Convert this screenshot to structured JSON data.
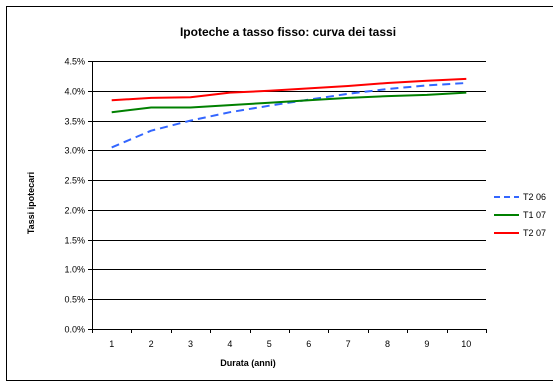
{
  "chart_data": {
    "type": "line",
    "title": "Ipoteche a tasso fisso: curva dei tassi",
    "xlabel": "Durata (anni)",
    "ylabel": "Tassi ipotecari",
    "x": [
      1,
      2,
      3,
      4,
      5,
      6,
      7,
      8,
      9,
      10
    ],
    "ylim": [
      0.0,
      4.5
    ],
    "yticks": [
      "0.0%",
      "0.5%",
      "1.0%",
      "1.5%",
      "2.0%",
      "2.5%",
      "3.0%",
      "3.5%",
      "4.0%",
      "4.5%"
    ],
    "grid": true,
    "legend_position": "right",
    "series": [
      {
        "name": "T2 06",
        "color": "#3366ff",
        "dash": true,
        "values": [
          3.05,
          3.33,
          3.5,
          3.64,
          3.75,
          3.85,
          3.95,
          4.03,
          4.09,
          4.13
        ]
      },
      {
        "name": "T1 07",
        "color": "#008000",
        "dash": false,
        "values": [
          3.64,
          3.72,
          3.72,
          3.76,
          3.8,
          3.84,
          3.88,
          3.91,
          3.93,
          3.97
        ]
      },
      {
        "name": "T2 07",
        "color": "#ff0000",
        "dash": false,
        "values": [
          3.84,
          3.88,
          3.89,
          3.97,
          4.0,
          4.04,
          4.08,
          4.13,
          4.17,
          4.2
        ]
      }
    ]
  }
}
